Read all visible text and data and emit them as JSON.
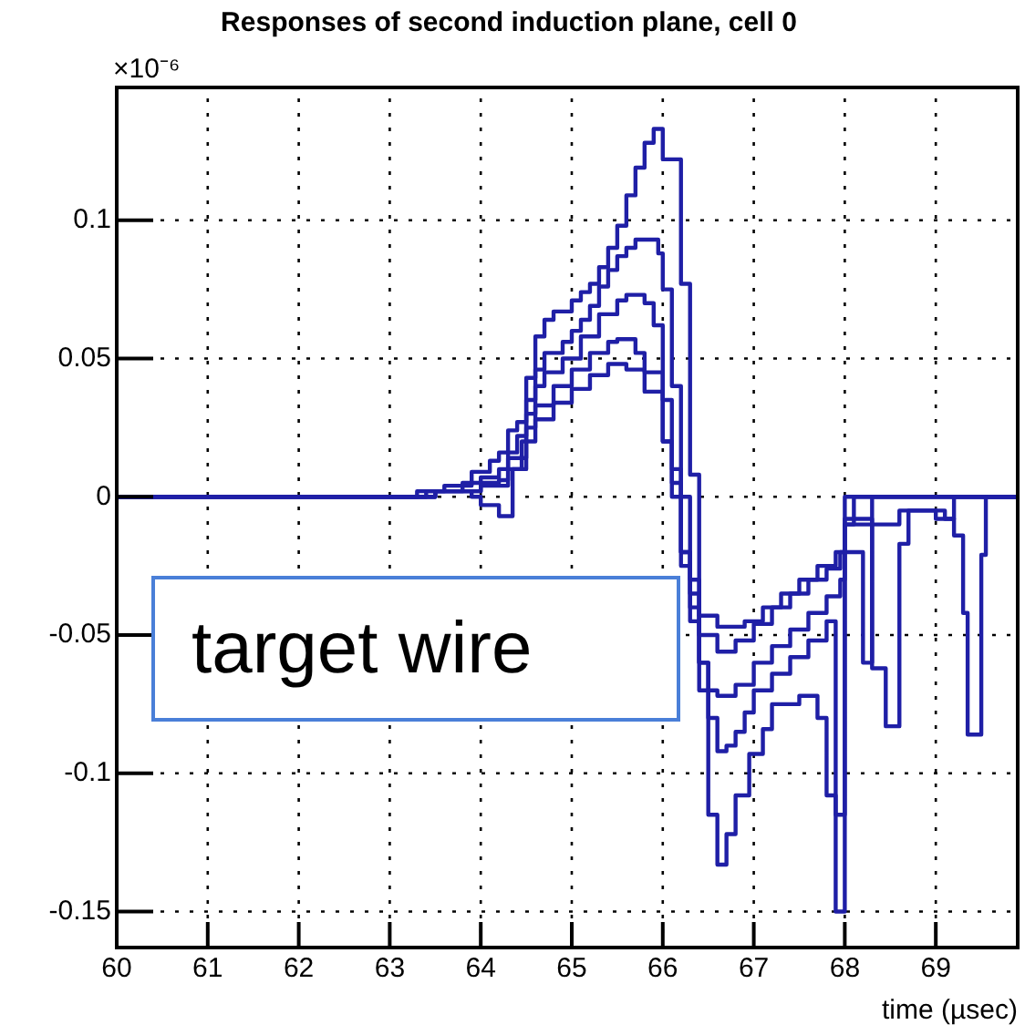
{
  "chart_data": {
    "type": "step",
    "title": "Responses of second induction plane, cell 0",
    "xlabel": "time (µsec)",
    "annotations": [
      "×10⁻⁶",
      "target wire"
    ],
    "xlim": [
      60,
      69.9
    ],
    "xticks": [
      60,
      61,
      62,
      63,
      64,
      65,
      66,
      67,
      68,
      69
    ],
    "ylim": [
      -0.163,
      0.148
    ],
    "yticks": [
      -0.15,
      -0.1,
      -0.05,
      0,
      0.05,
      0.1
    ],
    "grid": true,
    "line_style": "solid",
    "marker": "none",
    "series": [
      {
        "color": "#1f1fa6",
        "x": [
          60,
          63.3,
          63.6,
          63.9,
          64.1,
          64.2,
          64.3,
          64.4,
          64.5,
          64.6,
          64.7,
          64.8,
          65.0,
          65.1,
          65.2,
          65.3,
          65.4,
          65.5,
          65.6,
          65.7,
          65.8,
          65.9,
          66.0,
          66.2,
          66.3,
          66.4,
          66.5,
          66.6,
          66.7,
          66.8,
          66.95,
          67.1,
          67.2,
          67.5,
          67.7,
          67.8,
          67.9,
          68.0,
          69.9
        ],
        "values": [
          0,
          0.002,
          0.004,
          0.009,
          0.013,
          0.016,
          0.024,
          0.027,
          0.043,
          0.058,
          0.064,
          0.067,
          0.071,
          0.074,
          0.077,
          0.083,
          0.09,
          0.098,
          0.109,
          0.119,
          0.128,
          0.133,
          0.122,
          0.077,
          0.008,
          -0.07,
          -0.115,
          -0.133,
          -0.122,
          -0.108,
          -0.093,
          -0.084,
          -0.075,
          -0.072,
          -0.08,
          -0.108,
          -0.15,
          0,
          0
        ]
      },
      {
        "color": "#1f1fa6",
        "x": [
          60,
          63.4,
          63.8,
          64.0,
          64.2,
          64.3,
          64.4,
          64.5,
          64.6,
          64.7,
          64.9,
          65.0,
          65.1,
          65.2,
          65.3,
          65.4,
          65.5,
          65.6,
          65.7,
          65.95,
          66.0,
          66.1,
          66.2,
          66.3,
          66.4,
          66.5,
          66.6,
          66.7,
          66.8,
          66.9,
          67.0,
          67.2,
          67.4,
          67.6,
          67.8,
          67.9,
          68.0,
          68.1,
          69.9
        ],
        "values": [
          0,
          0.002,
          0.005,
          0.007,
          0.01,
          0.016,
          0.022,
          0.035,
          0.046,
          0.052,
          0.056,
          0.06,
          0.064,
          0.069,
          0.076,
          0.082,
          0.087,
          0.09,
          0.093,
          0.088,
          0.075,
          0.04,
          0,
          -0.03,
          -0.06,
          -0.08,
          -0.092,
          -0.09,
          -0.085,
          -0.078,
          -0.07,
          -0.064,
          -0.058,
          -0.052,
          -0.045,
          -0.115,
          -0.01,
          0,
          0
        ]
      },
      {
        "color": "#1f1fa6",
        "x": [
          60,
          63.5,
          64.0,
          64.2,
          64.3,
          64.5,
          64.6,
          64.7,
          64.9,
          65.1,
          65.3,
          65.5,
          65.6,
          65.8,
          65.9,
          66.0,
          66.1,
          66.2,
          66.3,
          66.4,
          66.5,
          66.6,
          66.8,
          67.0,
          67.2,
          67.4,
          67.6,
          67.8,
          67.95,
          68.0,
          68.2,
          68.3,
          69.9
        ],
        "values": [
          0,
          0.002,
          0.005,
          0.006,
          0.014,
          0.03,
          0.04,
          0.045,
          0.05,
          0.058,
          0.066,
          0.071,
          0.073,
          0.07,
          0.062,
          0.035,
          0.01,
          -0.02,
          -0.045,
          -0.06,
          -0.07,
          -0.072,
          -0.068,
          -0.06,
          -0.054,
          -0.048,
          -0.042,
          -0.036,
          -0.03,
          -0.02,
          -0.06,
          0,
          0
        ]
      },
      {
        "color": "#1f1fa6",
        "x": [
          60,
          63.5,
          64.0,
          64.3,
          64.5,
          64.6,
          64.8,
          65.0,
          65.2,
          65.4,
          65.5,
          65.7,
          65.8,
          66.0,
          66.1,
          66.2,
          66.3,
          66.4,
          66.6,
          66.8,
          67.0,
          67.2,
          67.4,
          67.6,
          67.8,
          67.95,
          68.0,
          68.3,
          68.45,
          68.6,
          68.7,
          69.1,
          69.2,
          69.3,
          69.35,
          69.5,
          69.55,
          69.9
        ],
        "values": [
          0,
          0.002,
          0.004,
          0.01,
          0.025,
          0.033,
          0.04,
          0.046,
          0.052,
          0.056,
          0.057,
          0.052,
          0.045,
          0.02,
          0,
          -0.025,
          -0.04,
          -0.05,
          -0.056,
          -0.052,
          -0.046,
          -0.04,
          -0.035,
          -0.03,
          -0.026,
          -0.02,
          -0.008,
          -0.062,
          -0.083,
          -0.017,
          -0.005,
          -0.008,
          -0.014,
          -0.042,
          -0.086,
          -0.021,
          0,
          0
        ]
      },
      {
        "color": "#1f1fa6",
        "x": [
          60,
          63.5,
          63.9,
          64.0,
          64.2,
          64.35,
          64.45,
          64.6,
          64.8,
          65.0,
          65.2,
          65.4,
          65.6,
          65.8,
          66.0,
          66.1,
          66.2,
          66.3,
          66.4,
          66.6,
          66.9,
          67.1,
          67.3,
          67.5,
          67.7,
          67.9,
          68.0,
          68.6,
          69.0,
          69.2,
          69.9
        ],
        "values": [
          0,
          0.002,
          0,
          -0.003,
          -0.007,
          0.01,
          0.02,
          0.028,
          0.034,
          0.039,
          0.044,
          0.048,
          0.046,
          0.038,
          0.02,
          0.005,
          -0.02,
          -0.035,
          -0.043,
          -0.047,
          -0.045,
          -0.04,
          -0.035,
          -0.03,
          -0.025,
          -0.02,
          -0.01,
          -0.005,
          -0.008,
          0,
          0
        ]
      }
    ]
  }
}
